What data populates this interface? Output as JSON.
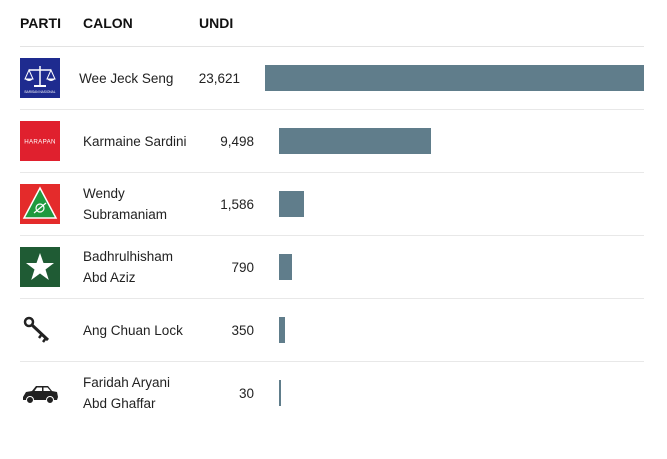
{
  "headers": {
    "parti": "PARTI",
    "calon": "CALON",
    "undi": "UNDI"
  },
  "colors": {
    "bar": "#607d8b"
  },
  "max_votes": 23621,
  "candidates": [
    {
      "name": "Wee Jeck Seng",
      "votes": "23,621",
      "votes_num": 23621,
      "party_logo": "barisan-nasional-logo",
      "logo_text": "BARISAN NASIONAL"
    },
    {
      "name": "Karmaine Sardini",
      "votes": "9,498",
      "votes_num": 9498,
      "party_logo": "pakatan-harapan-logo",
      "logo_text": "HARAPAN"
    },
    {
      "name": "Wendy Subramaniam",
      "votes": "1,586",
      "votes_num": 1586,
      "party_logo": "psm-logo"
    },
    {
      "name": "Badhrulhisham Abd Aziz",
      "votes": "790",
      "votes_num": 790,
      "party_logo": "star-logo"
    },
    {
      "name": "Ang Chuan Lock",
      "votes": "350",
      "votes_num": 350,
      "party_logo": "key-icon"
    },
    {
      "name": "Faridah Aryani Abd Ghaffar",
      "votes": "30",
      "votes_num": 30,
      "party_logo": "car-icon"
    }
  ]
}
